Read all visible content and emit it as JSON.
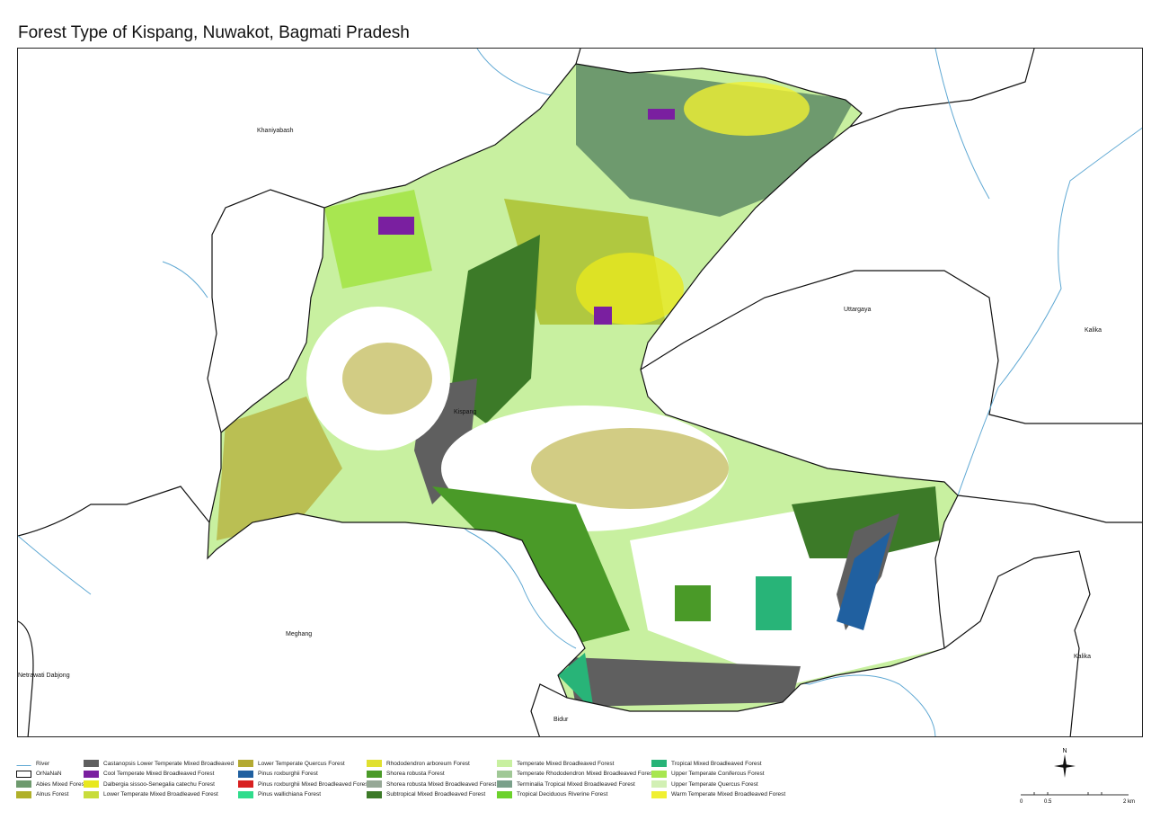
{
  "title": "Forest Type of Kispang, Nuwakot, Bagmati Pradesh",
  "places": {
    "khaniyabash": "Khaniyabash",
    "uttargaya": "Uttargaya",
    "kalika_1": "Kalika",
    "kalika_2": "Kalika",
    "meghang": "Meghang",
    "netrawati": "Netrawati Dabjong",
    "bidur": "Bidur",
    "kispang": "Kispang"
  },
  "legend": [
    {
      "label": "River",
      "color": "#5fa8d3",
      "kind": "line"
    },
    {
      "label": "OrNaNaN",
      "color": "#ffffff",
      "kind": "outline"
    },
    {
      "label": "Abies Mixed Forest",
      "color": "#6e9a6e"
    },
    {
      "label": "Alnus Forest",
      "color": "#b0b02a"
    },
    {
      "label": "Castanopsis Lower Temperate Mixed Broadleaved",
      "color": "#5f5f5f"
    },
    {
      "label": "Cool Temperate Mixed Broadleaved Forest",
      "color": "#7a1fa0"
    },
    {
      "label": "Dalbergia sissoo-Senegalia catechu Forest",
      "color": "#e8e81e"
    },
    {
      "label": "Lower Temperate Mixed Broadleaved Forest",
      "color": "#c8dc3c"
    },
    {
      "label": "Lower Temperate Quercus Forest",
      "color": "#b4aa32"
    },
    {
      "label": "Pinus roxburghii Forest",
      "color": "#2060a0"
    },
    {
      "label": "Pinus roxburghii Mixed Broadleaved Forest",
      "color": "#d82020"
    },
    {
      "label": "Pinus wallichiana Forest",
      "color": "#30dc8c"
    },
    {
      "label": "Rhododendron arboreum Forest",
      "color": "#e0e030"
    },
    {
      "label": "Shorea robusta Forest",
      "color": "#4a9a28"
    },
    {
      "label": "Shorea robusta Mixed Broadleaved Forest",
      "color": "#96a896"
    },
    {
      "label": "Subtropical Mixed Broadleaved Forest",
      "color": "#3c7a28"
    },
    {
      "label": "Temperate Mixed Broadleaved Forest",
      "color": "#c8f0a0"
    },
    {
      "label": "Temperate Rhododendron Mixed Broadleaved Forest",
      "color": "#a0c896"
    },
    {
      "label": "Terminalia Tropical Mixed Broadleaved Forest",
      "color": "#7aa08a"
    },
    {
      "label": "Tropical Deciduous Riverine Forest",
      "color": "#6cd22c"
    },
    {
      "label": "Tropical Mixed Broadleaved Forest",
      "color": "#28b478"
    },
    {
      "label": "Upper Temperate Coniferous Forest",
      "color": "#a8e650"
    },
    {
      "label": "Upper Temperate Quercus Forest",
      "color": "#d2f0b4"
    },
    {
      "label": "Warm Temperate Mixed Broadleaved Forest",
      "color": "#f0f032"
    }
  ],
  "north": "N",
  "scale": {
    "ticks": [
      "0",
      "0.5",
      "",
      "",
      "2 km"
    ]
  }
}
